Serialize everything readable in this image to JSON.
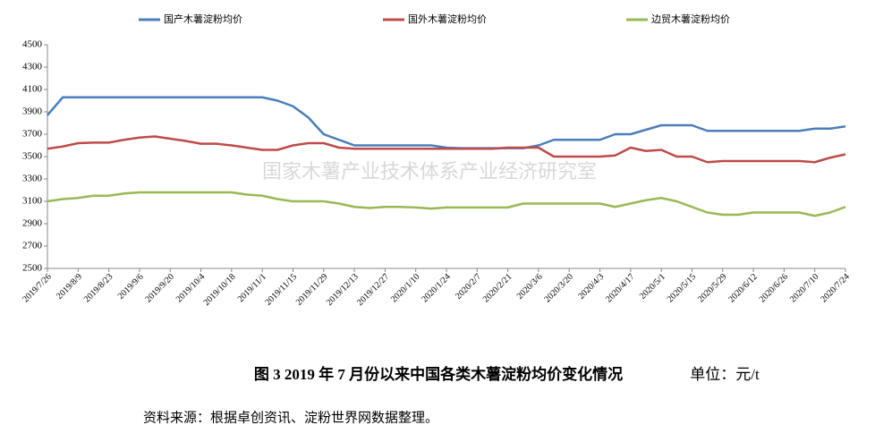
{
  "chart_data": {
    "type": "line",
    "categories": [
      "2019/7/26",
      null,
      "2019/8/9",
      null,
      "2019/8/23",
      null,
      "2019/9/6",
      null,
      "2019/9/20",
      null,
      "2019/10/4",
      null,
      "2019/10/18",
      null,
      "2019/11/1",
      null,
      "2019/11/15",
      null,
      "2019/11/29",
      null,
      "2019/12/13",
      null,
      "2019/12/27",
      null,
      "2020/1/10",
      null,
      "2020/1/24",
      null,
      "2020/2/7",
      null,
      "2020/2/21",
      null,
      "2020/3/6",
      null,
      "2020/3/20",
      null,
      "2020/4/3",
      null,
      "2020/4/17",
      null,
      "2020/5/1",
      null,
      "2020/5/15",
      null,
      "2020/5/29",
      null,
      "2020/6/12",
      null,
      "2020/6/26",
      null,
      "2020/7/10",
      null,
      "2020/7/24"
    ],
    "series": [
      {
        "name": "国产木薯淀粉均价",
        "color": "#4a7ebb",
        "values": [
          3870,
          4030,
          4030,
          4030,
          4030,
          4030,
          4030,
          4030,
          4030,
          4030,
          4030,
          4030,
          4030,
          4030,
          4030,
          4000,
          3950,
          3850,
          3700,
          3650,
          3600,
          3600,
          3600,
          3600,
          3600,
          3600,
          3580,
          3575,
          3575,
          3575,
          3575,
          3575,
          3600,
          3650,
          3650,
          3650,
          3650,
          3700,
          3700,
          3740,
          3780,
          3780,
          3780,
          3730,
          3730,
          3730,
          3730,
          3730,
          3730,
          3730,
          3750,
          3750,
          3770
        ]
      },
      {
        "name": "国外木薯淀粉均价",
        "color": "#be4b48",
        "values": [
          3570,
          3590,
          3620,
          3625,
          3625,
          3650,
          3670,
          3680,
          3660,
          3640,
          3615,
          3615,
          3600,
          3580,
          3560,
          3560,
          3600,
          3620,
          3620,
          3580,
          3570,
          3570,
          3570,
          3570,
          3570,
          3570,
          3570,
          3570,
          3570,
          3570,
          3580,
          3580,
          3580,
          3500,
          3500,
          3500,
          3500,
          3510,
          3580,
          3550,
          3560,
          3500,
          3500,
          3450,
          3460,
          3460,
          3460,
          3460,
          3460,
          3460,
          3450,
          3490,
          3520
        ]
      },
      {
        "name": "边贸木薯淀粉均价",
        "color": "#98b954",
        "values": [
          3100,
          3120,
          3130,
          3150,
          3150,
          3170,
          3180,
          3180,
          3180,
          3180,
          3180,
          3180,
          3180,
          3160,
          3150,
          3120,
          3100,
          3100,
          3100,
          3080,
          3050,
          3040,
          3050,
          3050,
          3045,
          3035,
          3045,
          3045,
          3045,
          3045,
          3045,
          3080,
          3080,
          3080,
          3080,
          3080,
          3080,
          3050,
          3080,
          3110,
          3130,
          3100,
          3050,
          3000,
          2980,
          2980,
          3000,
          3000,
          3000,
          3000,
          2970,
          3000,
          3050
        ]
      }
    ],
    "ylim": [
      2500,
      4500
    ],
    "yticks": [
      2500,
      2700,
      2900,
      3100,
      3300,
      3500,
      3700,
      3900,
      4100,
      4300,
      4500
    ],
    "watermark": "国家木薯产业技术体系产业经济研究室",
    "caption": "图 3   2019 年 7 月份以来中国各类木薯淀粉均价变化情况",
    "unit": "单位：元/t",
    "source": "资料来源：根据卓创资讯、淀粉世界网数据整理。"
  }
}
